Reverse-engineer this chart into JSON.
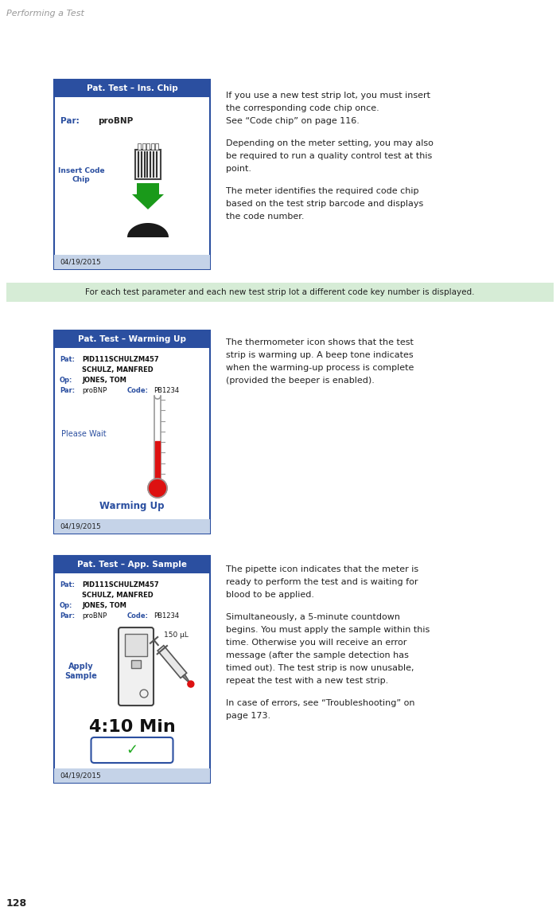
{
  "page_bg": "#ffffff",
  "page_title": "Performing a Test",
  "page_number": "128",
  "header_color": "#2b4fa0",
  "header_text_color": "#ffffff",
  "screen_border_color": "#2b4fa0",
  "screen_bg": "#ffffff",
  "screen_footer_bg": "#c5d3e8",
  "blue_text_color": "#2b4fa0",
  "green_arrow_color": "#1a9a1a",
  "red_color": "#dd1111",
  "green_check_color": "#22aa22",
  "highlight_bg": "#d6ecd6",
  "highlight_border": "#88bb88",
  "highlight_text": "For each test parameter and each new test strip lot a different code key number is displayed.",
  "screen1": {
    "title": "Pat. Test – Ins. Chip",
    "par_label": "Par:",
    "par_value": "proBNP",
    "insert_label": "Insert Code\nChip",
    "date": "04/19/2015"
  },
  "screen2": {
    "title": "Pat. Test – Warming Up",
    "pat_label": "Pat:",
    "pat_value1": "PID111SCHULZM457",
    "pat_value2": "SCHULZ, MANFRED",
    "op_label": "Op:",
    "op_value": "JONES, TOM",
    "par_label": "Par:",
    "par_value": "proBNP",
    "code_label": "Code:",
    "code_value": "PB1234",
    "please_wait": "Please Wait",
    "warming_up": "Warming Up",
    "date": "04/19/2015"
  },
  "screen3": {
    "title": "Pat. Test – App. Sample",
    "pat_label": "Pat:",
    "pat_value1": "PID111SCHULZM457",
    "pat_value2": "SCHULZ, MANFRED",
    "op_label": "Op:",
    "op_value": "JONES, TOM",
    "par_label": "Par:",
    "par_value": "proBNP",
    "code_label": "Code:",
    "code_value": "PB1234",
    "apply_label": "Apply\nSample",
    "volume": "150 µL",
    "countdown": "4:10 Min",
    "date": "04/19/2015"
  },
  "text1_lines": [
    "If you use a new test strip lot, you must insert",
    "the corresponding code chip once.",
    "See “Code chip” on page 116."
  ],
  "text2_lines": [
    "Depending on the meter setting, you may also",
    "be required to run a quality control test at this",
    "point."
  ],
  "text3_lines": [
    "The meter identifies the required code chip",
    "based on the test strip barcode and displays",
    "the code number."
  ],
  "text4_lines": [
    "The thermometer icon shows that the test",
    "strip is warming up. A beep tone indicates",
    "when the warming-up process is complete",
    "(provided the beeper is enabled)."
  ],
  "text5_lines": [
    "The pipette icon indicates that the meter is",
    "ready to perform the test and is waiting for",
    "blood to be applied."
  ],
  "text6_lines": [
    "Simultaneously, a 5-minute countdown",
    "begins. You must apply the sample within this",
    "time. Otherwise you will receive an error",
    "message (after the sample detection has",
    "timed out). The test strip is now unusable,",
    "repeat the test with a new test strip."
  ],
  "text7_lines": [
    "In case of errors, see “Troubleshooting” on",
    "page 173."
  ]
}
